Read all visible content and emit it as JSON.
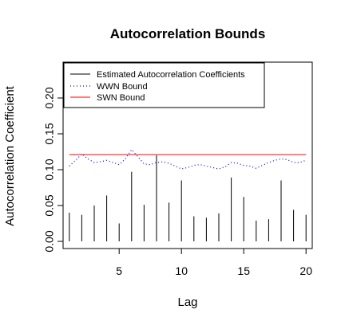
{
  "chart_data": {
    "type": "line",
    "title": "Autocorrelation Bounds",
    "xlabel": "Lag",
    "ylabel": "Autocorrelation Coefficient",
    "xlim": [
      0.5,
      20.5
    ],
    "ylim": [
      -0.01,
      0.25
    ],
    "xticks": [
      5,
      10,
      15,
      20
    ],
    "yticks": [
      0.0,
      0.05,
      0.1,
      0.15,
      0.2
    ],
    "ytick_labels": [
      "0.00",
      "0.05",
      "0.10",
      "0.15",
      "0.20"
    ],
    "grid": false,
    "legend_position": "top-left",
    "series": [
      {
        "name": "Estimated Autocorrelation Coefficients",
        "style": "vertical-lines",
        "color": "#000000",
        "x": [
          1,
          2,
          3,
          4,
          5,
          6,
          7,
          8,
          9,
          10,
          11,
          12,
          13,
          14,
          15,
          16,
          17,
          18,
          19,
          20
        ],
        "values": [
          0.04,
          0.037,
          0.05,
          0.064,
          0.025,
          0.097,
          0.051,
          0.12,
          0.054,
          0.085,
          0.035,
          0.033,
          0.039,
          0.089,
          0.062,
          0.029,
          0.031,
          0.085,
          0.044,
          0.037
        ]
      },
      {
        "name": "WWN Bound",
        "style": "dotted",
        "color": "#0000ff",
        "x": [
          1,
          1.5,
          2,
          2.5,
          3,
          3.5,
          4,
          4.5,
          5,
          5.5,
          6,
          6.5,
          7,
          7.5,
          8,
          8.5,
          9,
          9.5,
          10,
          10.5,
          11,
          11.5,
          12,
          12.5,
          13,
          13.5,
          14,
          14.5,
          15,
          15.5,
          16,
          16.5,
          17,
          17.5,
          18,
          18.5,
          19,
          19.5,
          20
        ],
        "values": [
          0.105,
          0.113,
          0.122,
          0.115,
          0.11,
          0.111,
          0.113,
          0.11,
          0.107,
          0.115,
          0.128,
          0.118,
          0.108,
          0.107,
          0.11,
          0.111,
          0.109,
          0.105,
          0.101,
          0.103,
          0.106,
          0.107,
          0.105,
          0.103,
          0.101,
          0.104,
          0.11,
          0.109,
          0.106,
          0.105,
          0.102,
          0.106,
          0.11,
          0.113,
          0.115,
          0.114,
          0.11,
          0.11,
          0.113
        ]
      },
      {
        "name": "SWN Bound",
        "style": "solid",
        "color": "#ff0000",
        "x": [
          1,
          20
        ],
        "values": [
          0.121,
          0.121
        ]
      }
    ]
  }
}
